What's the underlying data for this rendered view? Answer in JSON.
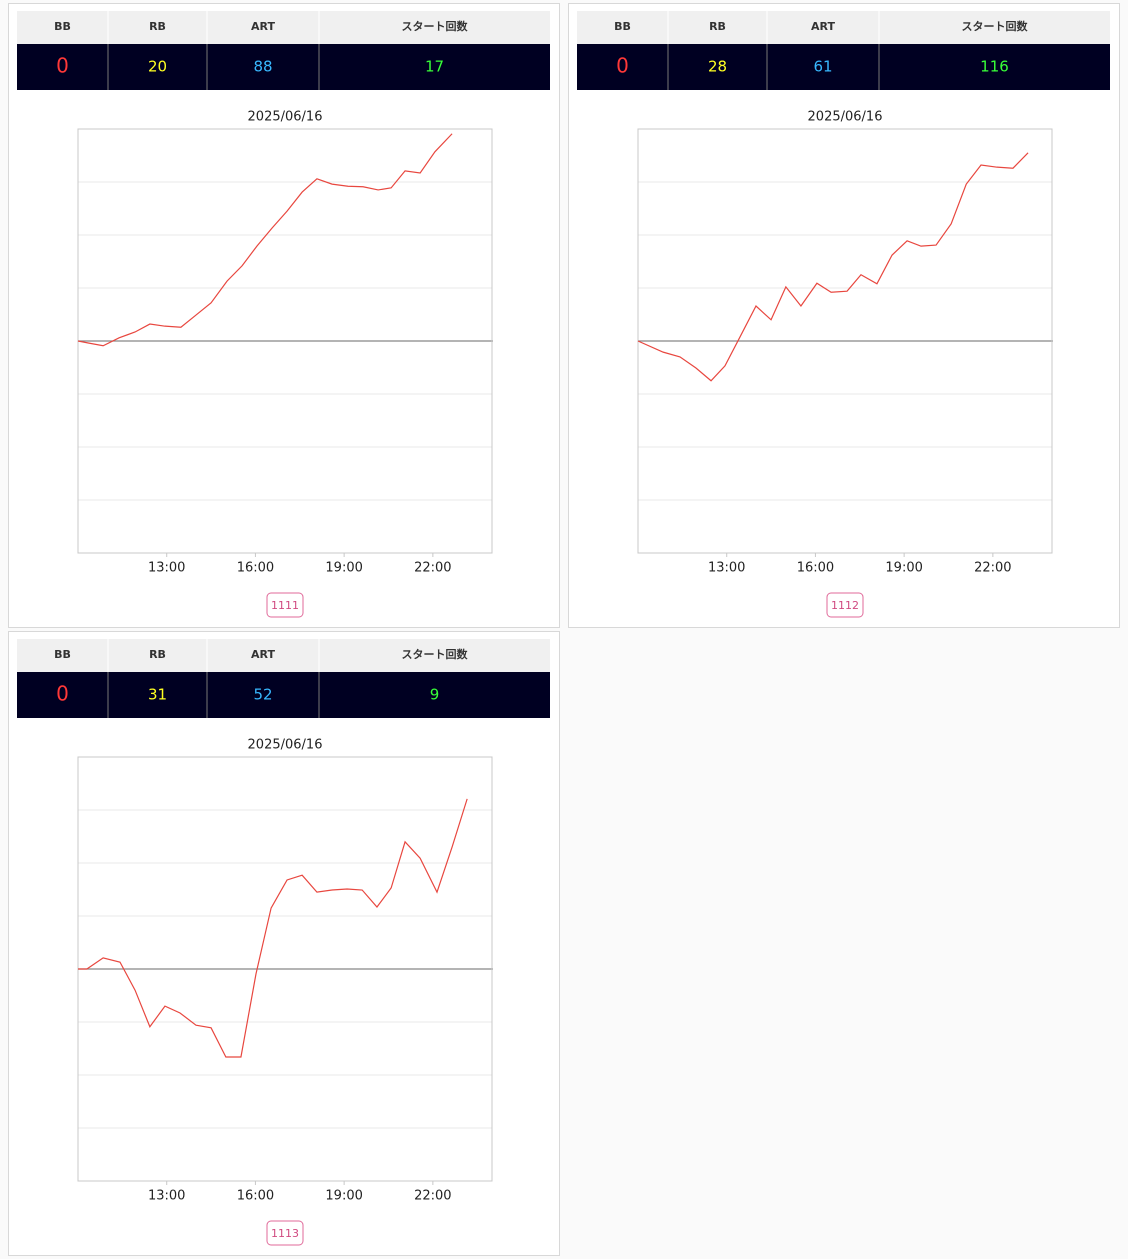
{
  "panels": [
    {
      "headers": [
        "BB",
        "RB",
        "ART",
        "スタート回数"
      ],
      "values": [
        "0",
        "20",
        "88",
        "17"
      ],
      "value_colors": [
        "#ff3838",
        "#ffff22",
        "#38b8ff",
        "#38ff38"
      ],
      "button": "1111",
      "chart": {
        "type": "line",
        "title": "2025/06/16",
        "xlim": [
          10,
          24
        ],
        "ylim": [
          -4,
          4
        ],
        "yticks": [
          -3,
          -2,
          -1,
          0,
          1,
          2,
          3
        ],
        "xticks": [
          {
            "value": 13,
            "label": "13:00"
          },
          {
            "value": 16,
            "label": "16:00"
          },
          {
            "value": 19,
            "label": "19:00"
          },
          {
            "value": 22,
            "label": "22:00"
          }
        ],
        "x": [
          10.0,
          10.37,
          10.85,
          11.39,
          11.93,
          12.43,
          12.94,
          13.48,
          13.99,
          14.5,
          15.04,
          15.55,
          16.05,
          16.56,
          17.07,
          17.58,
          18.08,
          18.59,
          19.13,
          19.64,
          20.15,
          20.59,
          21.06,
          21.57,
          22.07,
          22.65
        ],
        "series": [
          {
            "color": "#e8473f",
            "values": [
              0,
              -0.04,
              -0.09,
              0.06,
              0.17,
              0.32,
              0.28,
              0.26,
              0.49,
              0.72,
              1.13,
              1.42,
              1.79,
              2.13,
              2.45,
              2.81,
              3.06,
              2.96,
              2.92,
              2.91,
              2.85,
              2.89,
              3.21,
              3.17,
              3.57,
              3.91
            ]
          }
        ]
      }
    },
    {
      "headers": [
        "BB",
        "RB",
        "ART",
        "スタート回数"
      ],
      "values": [
        "0",
        "28",
        "61",
        "116"
      ],
      "value_colors": [
        "#ff3838",
        "#ffff22",
        "#38b8ff",
        "#38ff38"
      ],
      "button": "1112",
      "chart": {
        "type": "line",
        "title": "2025/06/16",
        "xlim": [
          10,
          24
        ],
        "ylim": [
          -4,
          4
        ],
        "yticks": [
          -3,
          -2,
          -1,
          0,
          1,
          2,
          3
        ],
        "xticks": [
          {
            "value": 13,
            "label": "13:00"
          },
          {
            "value": 16,
            "label": "16:00"
          },
          {
            "value": 19,
            "label": "19:00"
          },
          {
            "value": 22,
            "label": "22:00"
          }
        ],
        "x": [
          10.0,
          10.85,
          11.42,
          11.96,
          12.47,
          12.94,
          13.48,
          13.99,
          14.5,
          15.0,
          15.51,
          16.05,
          16.53,
          17.07,
          17.54,
          18.08,
          18.59,
          19.1,
          19.57,
          20.08,
          20.59,
          21.1,
          21.6,
          22.14,
          22.68,
          23.19
        ],
        "series": [
          {
            "color": "#e8473f",
            "values": [
              0,
              -0.21,
              -0.3,
              -0.51,
              -0.75,
              -0.47,
              0.11,
              0.66,
              0.4,
              1.02,
              0.66,
              1.09,
              0.92,
              0.94,
              1.25,
              1.08,
              1.62,
              1.89,
              1.79,
              1.81,
              2.21,
              2.96,
              3.32,
              3.28,
              3.26,
              3.55
            ]
          }
        ]
      }
    },
    {
      "headers": [
        "BB",
        "RB",
        "ART",
        "スタート回数"
      ],
      "values": [
        "0",
        "31",
        "52",
        "9"
      ],
      "value_colors": [
        "#ff3838",
        "#ffff22",
        "#38b8ff",
        "#38ff38"
      ],
      "button": "1113",
      "chart": {
        "type": "line",
        "title": "2025/06/16",
        "xlim": [
          10,
          24
        ],
        "ylim": [
          -4,
          4
        ],
        "yticks": [
          -3,
          -2,
          -1,
          0,
          1,
          2,
          3
        ],
        "xticks": [
          {
            "value": 13,
            "label": "13:00"
          },
          {
            "value": 16,
            "label": "16:00"
          },
          {
            "value": 19,
            "label": "19:00"
          },
          {
            "value": 22,
            "label": "22:00"
          }
        ],
        "x": [
          10.0,
          10.3,
          10.85,
          11.42,
          11.93,
          12.43,
          12.94,
          13.45,
          13.99,
          14.5,
          15.0,
          15.51,
          16.02,
          16.53,
          17.07,
          17.58,
          18.08,
          18.59,
          19.1,
          19.61,
          20.11,
          20.59,
          21.06,
          21.57,
          22.14,
          22.65,
          23.16
        ],
        "series": [
          {
            "color": "#e8473f",
            "values": [
              0,
              0,
              0.21,
              0.13,
              -0.4,
              -1.09,
              -0.7,
              -0.83,
              -1.06,
              -1.11,
              -1.66,
              -1.66,
              -0.09,
              1.15,
              1.68,
              1.77,
              1.45,
              1.49,
              1.51,
              1.49,
              1.17,
              1.53,
              2.4,
              2.09,
              1.45,
              2.3,
              3.21
            ]
          }
        ]
      }
    }
  ]
}
